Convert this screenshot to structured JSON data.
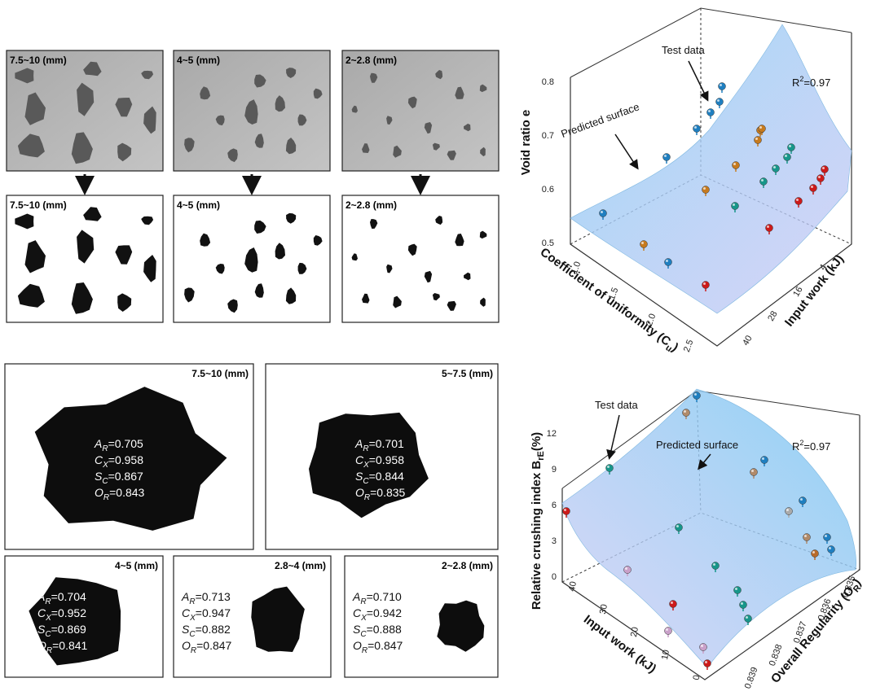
{
  "images": {
    "grayscale": [
      {
        "label": "7.5~10 (mm)"
      },
      {
        "label": "4~5 (mm)"
      },
      {
        "label": "2~2.8 (mm)"
      }
    ],
    "binary": [
      {
        "label": "7.5~10 (mm)"
      },
      {
        "label": "4~5 (mm)"
      },
      {
        "label": "2~2.8 (mm)"
      }
    ]
  },
  "particles": [
    {
      "label": "7.5~10 (mm)",
      "factors": [
        {
          "name": "A",
          "sub": "R",
          "value": "=0.705"
        },
        {
          "name": "C",
          "sub": "X",
          "value": "=0.958"
        },
        {
          "name": "S",
          "sub": "C",
          "value": "=0.867"
        },
        {
          "name": "O",
          "sub": "R",
          "value": "=0.843"
        }
      ]
    },
    {
      "label": "5~7.5 (mm)",
      "factors": [
        {
          "name": "A",
          "sub": "R",
          "value": "=0.701"
        },
        {
          "name": "C",
          "sub": "X",
          "value": "=0.958"
        },
        {
          "name": "S",
          "sub": "C",
          "value": "=0.844"
        },
        {
          "name": "O",
          "sub": "R",
          "value": "=0.835"
        }
      ]
    },
    {
      "label": "4~5 (mm)",
      "factors": [
        {
          "name": "A",
          "sub": "R",
          "value": "=0.704"
        },
        {
          "name": "C",
          "sub": "X",
          "value": "=0.952"
        },
        {
          "name": "S",
          "sub": "C",
          "value": "=0.869"
        },
        {
          "name": "O",
          "sub": "R",
          "value": "=0.841"
        }
      ]
    },
    {
      "label": "2.8~4 (mm)",
      "factors": [
        {
          "name": "A",
          "sub": "R",
          "value": "=0.713"
        },
        {
          "name": "C",
          "sub": "X",
          "value": "=0.947"
        },
        {
          "name": "S",
          "sub": "C",
          "value": "=0.882"
        },
        {
          "name": "O",
          "sub": "R",
          "value": "=0.847"
        }
      ]
    },
    {
      "label": "2~2.8 (mm)",
      "factors": [
        {
          "name": "A",
          "sub": "R",
          "value": "=0.710"
        },
        {
          "name": "C",
          "sub": "X",
          "value": "=0.942"
        },
        {
          "name": "S",
          "sub": "C",
          "value": "=0.888"
        },
        {
          "name": "O",
          "sub": "R",
          "value": "=0.847"
        }
      ]
    }
  ],
  "void_ratio_plot": {
    "z_label": "Void ratio e",
    "x_label": {
      "text": "Coefficient of uniformity (C",
      "sub": "u",
      "end": ")"
    },
    "y_label": "Input work (kJ)",
    "z_ticks": [
      "0.5",
      "0.6",
      "0.7",
      "0.8"
    ],
    "x_ticks": [
      "1.0",
      "1.5",
      "2.0",
      "2.5"
    ],
    "y_ticks": [
      "4",
      "16",
      "28",
      "40"
    ],
    "test_label": "Test data",
    "surface_label": "Predicted surface",
    "r2": {
      "text": "R",
      "sup": "2",
      "value": "=0.97"
    }
  },
  "crushing_plot": {
    "z_label": {
      "text": "Relative crushing index B",
      "sub": "rE",
      "end": "(%)"
    },
    "x_label": "Input work (kJ)",
    "y_label": {
      "text": "Overall Regularity (O",
      "sub": "R",
      "end": ")"
    },
    "z_ticks": [
      "0",
      "3",
      "6",
      "9",
      "12"
    ],
    "x_ticks": [
      "0",
      "10",
      "20",
      "30",
      "40"
    ],
    "y_ticks": [
      "0.835",
      "0.836",
      "0.837",
      "0.838",
      "0.839"
    ],
    "test_label": "Test data",
    "surface_label": "Predicted surface",
    "r2": {
      "text": "R",
      "sup": "2",
      "value": "=0.97"
    }
  }
}
